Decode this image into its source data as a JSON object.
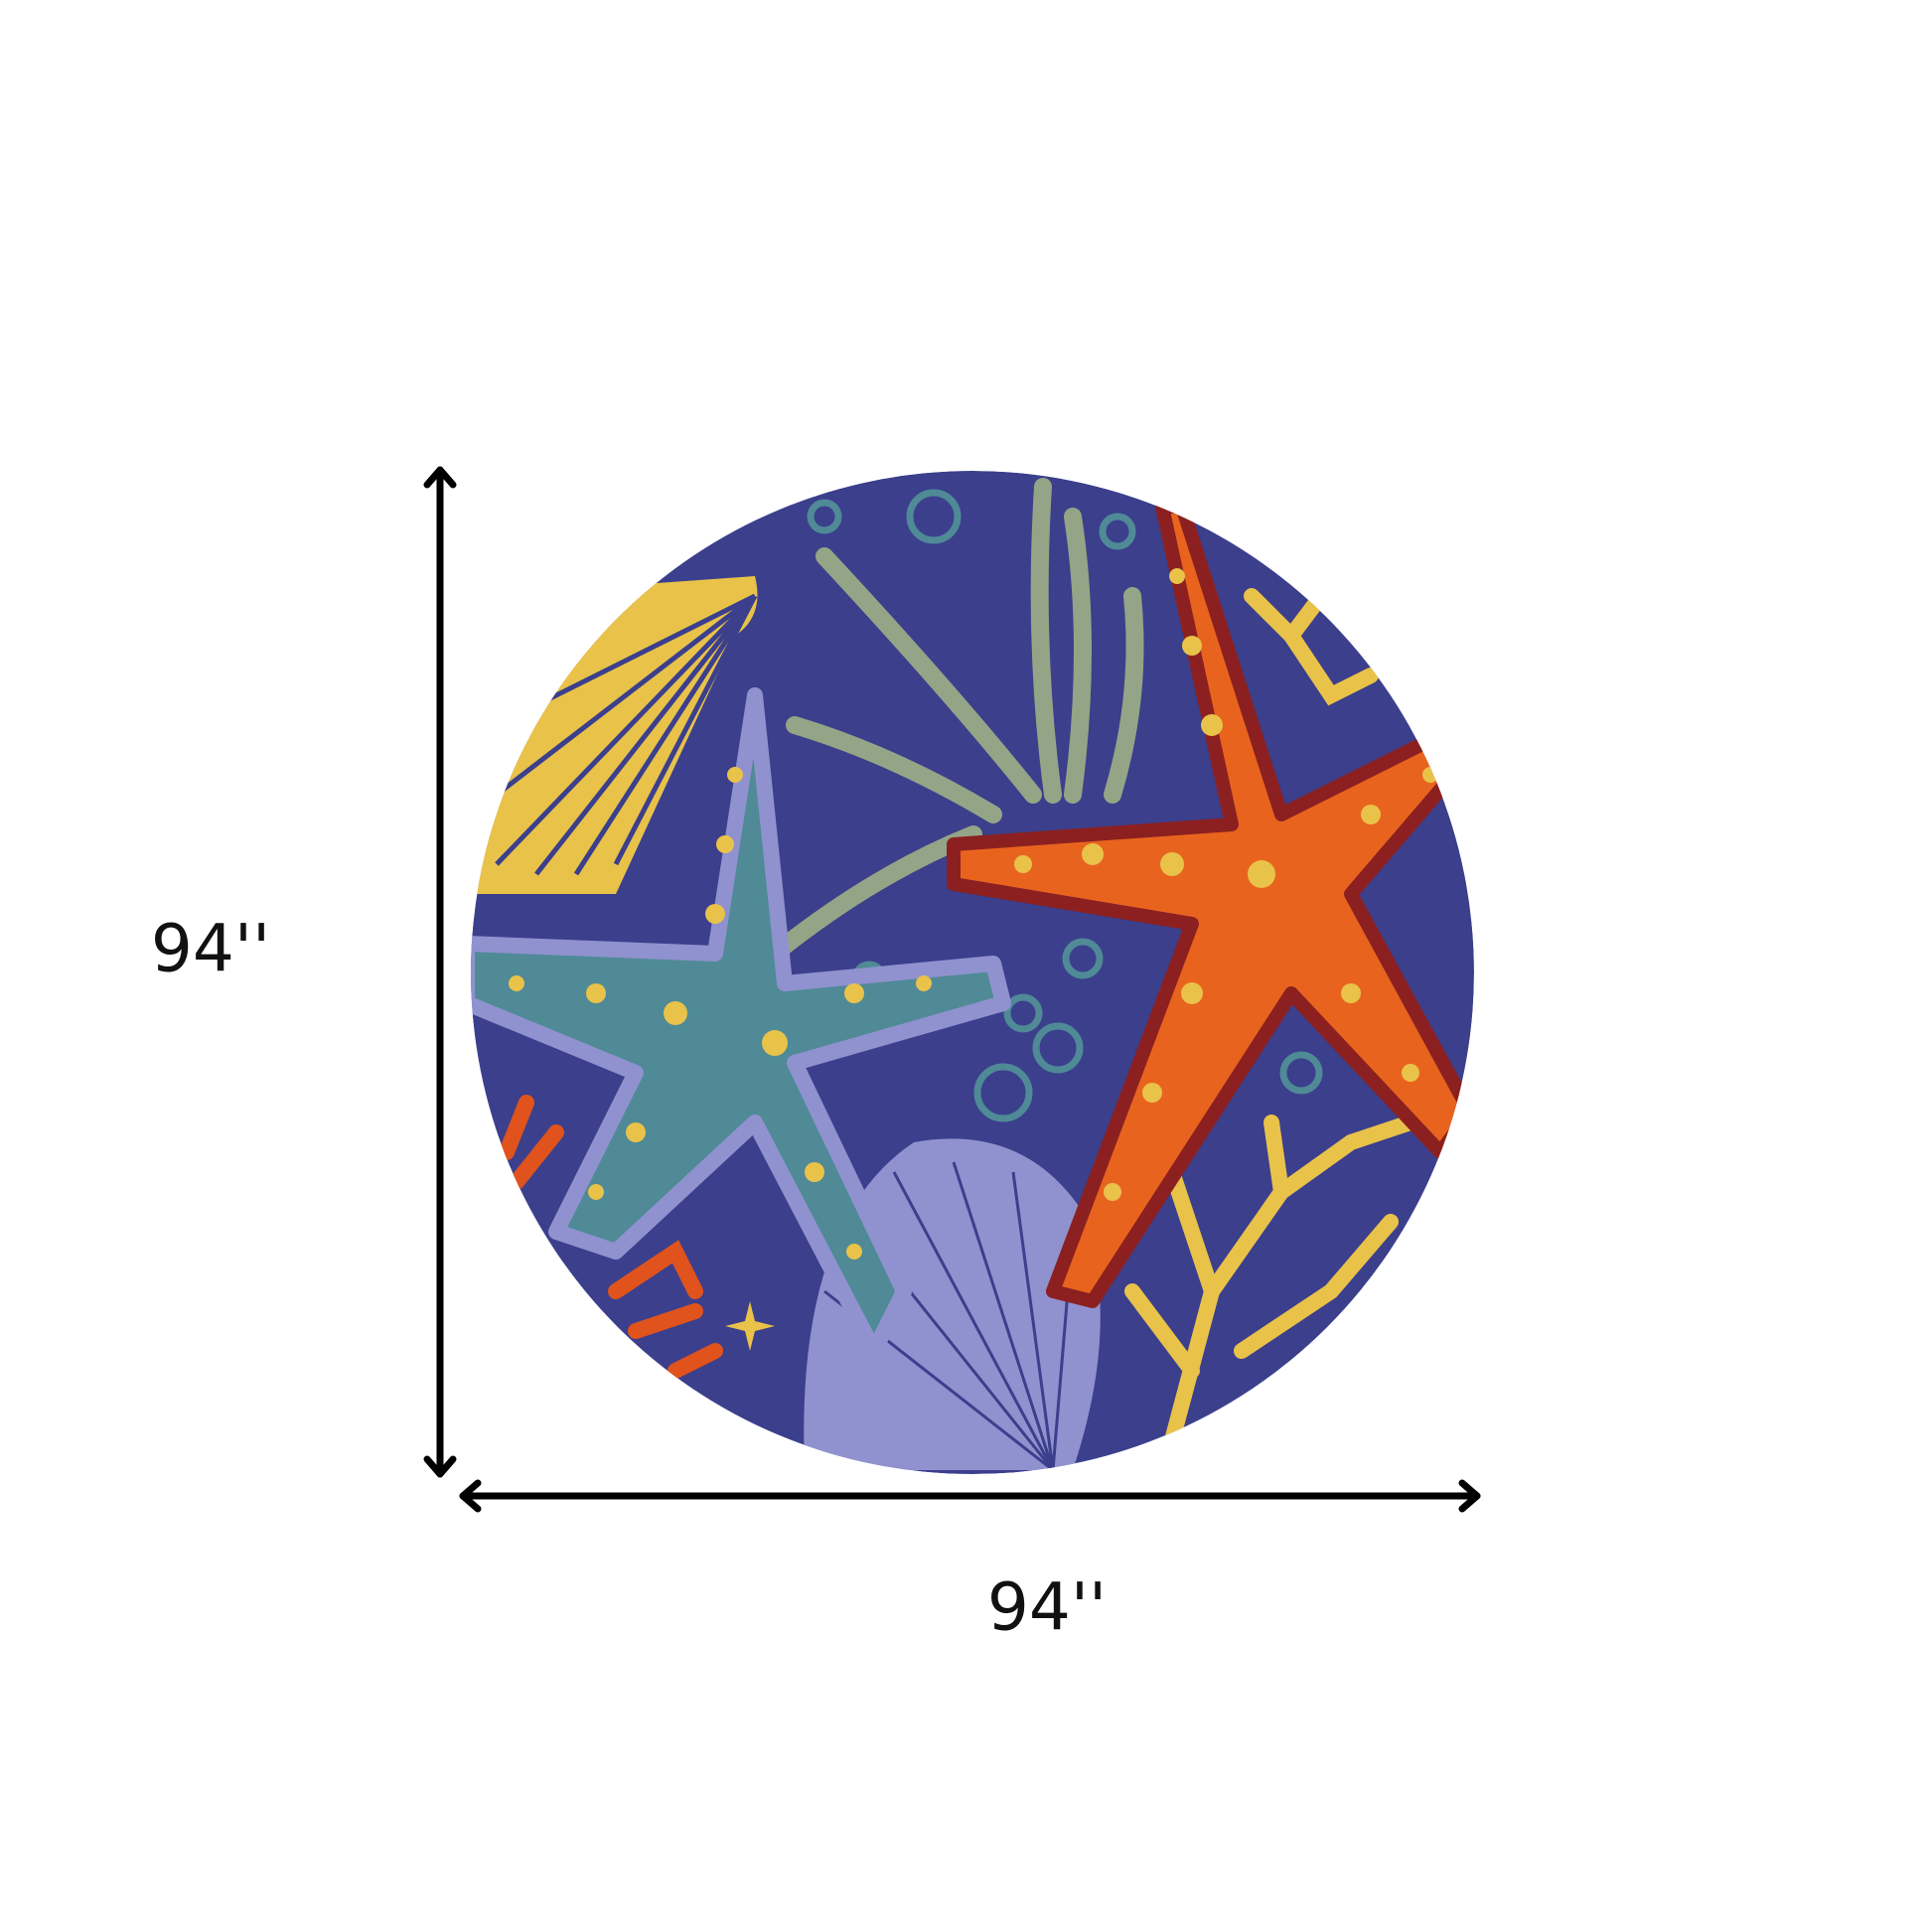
{
  "dimensions": {
    "height_label": "94''",
    "width_label": "94''"
  },
  "product": {
    "shape": "round",
    "colors": {
      "background": "#3b3f8c",
      "orange_starfish": "#e8641e",
      "teal_starfish": "#4f8a96",
      "yellow": "#e9c24a",
      "lavender_shell": "#8f92cf",
      "seaweed": "#93a586",
      "bubbles": "#4f8a96",
      "coral_orange": "#e0531c"
    }
  }
}
